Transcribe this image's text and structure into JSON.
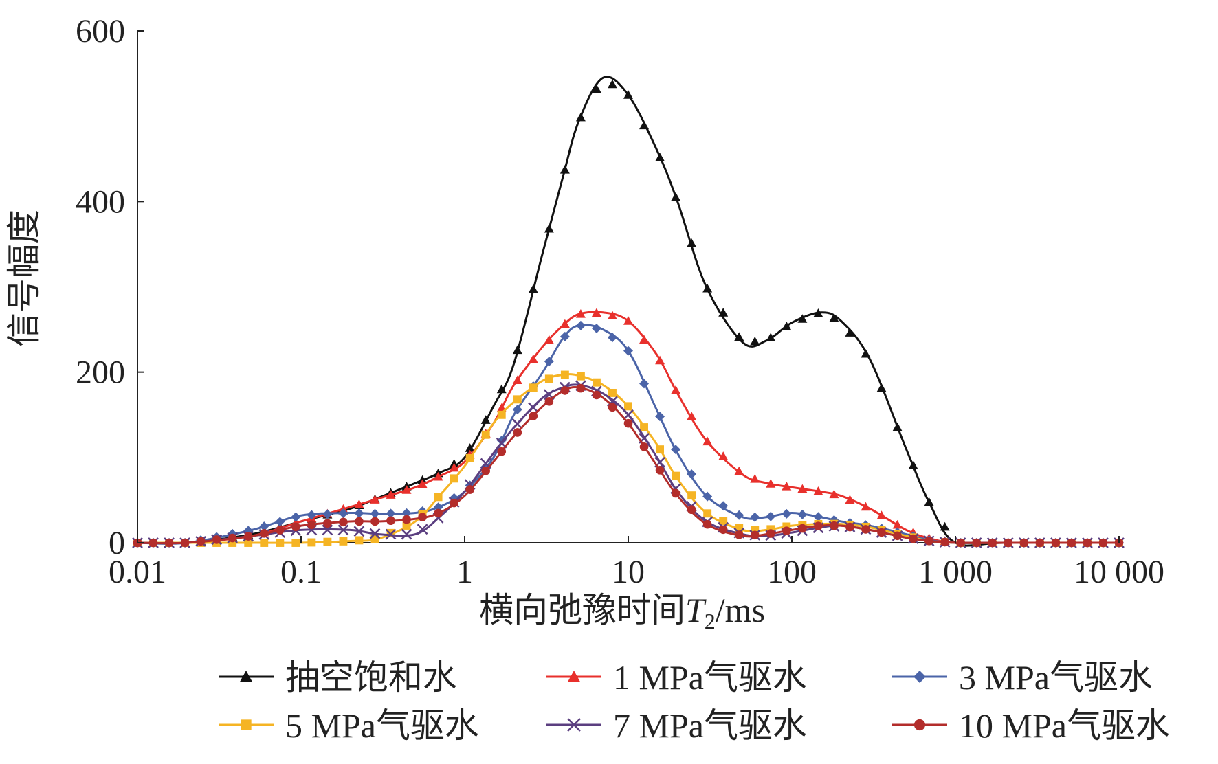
{
  "chart_data": {
    "type": "line",
    "title": "",
    "xlabel_main": "横向弛豫时间",
    "xlabel_var": "T",
    "xlabel_sub": "2",
    "xlabel_unit": "/ms",
    "ylabel": "信号幅度",
    "x_scale": "log",
    "xlim": [
      0.01,
      10000
    ],
    "ylim": [
      0,
      600
    ],
    "x_ticks": [
      {
        "value": 0.01,
        "label": "0.01"
      },
      {
        "value": 0.1,
        "label": "0.1"
      },
      {
        "value": 1,
        "label": "1"
      },
      {
        "value": 10,
        "label": "10"
      },
      {
        "value": 100,
        "label": "100"
      },
      {
        "value": 1000,
        "label": "1 000"
      },
      {
        "value": 10000,
        "label": "10 000"
      }
    ],
    "y_ticks": [
      {
        "value": 0,
        "label": "0"
      },
      {
        "value": 200,
        "label": "200"
      },
      {
        "value": 400,
        "label": "400"
      },
      {
        "value": 600,
        "label": "600"
      }
    ],
    "grid": false,
    "legend_position": "bottom",
    "series": [
      {
        "name": "抽空饱和水",
        "color": "#111111",
        "marker": "triangle",
        "x": [
          0.01,
          0.02,
          0.05,
          0.1,
          0.2,
          0.3,
          0.5,
          0.7,
          1,
          1.5,
          2,
          3,
          4,
          5,
          7,
          10,
          15,
          20,
          30,
          50,
          70,
          100,
          150,
          200,
          300,
          500,
          700,
          1000,
          2000,
          10000
        ],
        "y": [
          0,
          0,
          10,
          25,
          40,
          53,
          70,
          82,
          100,
          160,
          210,
          340,
          430,
          495,
          545,
          525,
          460,
          400,
          300,
          235,
          237,
          258,
          270,
          260,
          215,
          110,
          45,
          0,
          0,
          0
        ]
      },
      {
        "name": "1 MPa气驱水",
        "color": "#e8302c",
        "marker": "triangle",
        "x": [
          0.01,
          0.02,
          0.05,
          0.1,
          0.2,
          0.3,
          0.5,
          0.7,
          1,
          1.5,
          2,
          3,
          4,
          5,
          7,
          10,
          15,
          20,
          30,
          50,
          70,
          100,
          150,
          200,
          300,
          500,
          700,
          1000,
          2000,
          10000
        ],
        "y": [
          0,
          0,
          8,
          25,
          42,
          52,
          65,
          78,
          95,
          140,
          185,
          230,
          255,
          268,
          270,
          260,
          220,
          175,
          120,
          80,
          70,
          65,
          60,
          55,
          40,
          15,
          5,
          0,
          0,
          0
        ]
      },
      {
        "name": "3 MPa气驱水",
        "color": "#4b64a8",
        "marker": "diamond",
        "x": [
          0.01,
          0.02,
          0.05,
          0.1,
          0.2,
          0.3,
          0.5,
          0.7,
          1,
          1.5,
          2,
          3,
          4,
          5,
          7,
          10,
          15,
          20,
          30,
          50,
          70,
          100,
          150,
          200,
          300,
          500,
          700,
          1000,
          2000,
          10000
        ],
        "y": [
          0,
          0,
          15,
          32,
          35,
          34,
          35,
          42,
          60,
          100,
          150,
          200,
          240,
          255,
          250,
          225,
          155,
          105,
          55,
          30,
          30,
          35,
          30,
          25,
          20,
          10,
          3,
          0,
          0,
          0
        ]
      },
      {
        "name": "5 MPa气驱水",
        "color": "#f5b424",
        "marker": "square",
        "x": [
          0.01,
          0.02,
          0.05,
          0.1,
          0.2,
          0.3,
          0.5,
          0.7,
          1,
          1.5,
          2,
          3,
          4,
          5,
          7,
          10,
          15,
          20,
          30,
          50,
          70,
          100,
          150,
          200,
          300,
          500,
          700,
          1000,
          2000,
          10000
        ],
        "y": [
          0,
          0,
          0,
          0,
          2,
          5,
          25,
          55,
          90,
          140,
          165,
          190,
          197,
          196,
          185,
          160,
          115,
          75,
          35,
          15,
          15,
          20,
          22,
          22,
          18,
          8,
          2,
          0,
          0,
          0
        ]
      },
      {
        "name": "7 MPa气驱水",
        "color": "#5b3f80",
        "marker": "x",
        "x": [
          0.01,
          0.02,
          0.05,
          0.1,
          0.2,
          0.3,
          0.5,
          0.7,
          1,
          1.5,
          2,
          3,
          4,
          5,
          7,
          10,
          15,
          20,
          30,
          50,
          70,
          100,
          150,
          200,
          300,
          500,
          700,
          1000,
          2000,
          10000
        ],
        "y": [
          0,
          0,
          8,
          15,
          15,
          10,
          10,
          30,
          60,
          105,
          135,
          170,
          182,
          185,
          175,
          150,
          100,
          60,
          25,
          10,
          8,
          12,
          18,
          20,
          15,
          6,
          2,
          0,
          0,
          0
        ]
      },
      {
        "name": "10 MPa气驱水",
        "color": "#b32d2b",
        "marker": "circle",
        "x": [
          0.01,
          0.02,
          0.05,
          0.1,
          0.2,
          0.3,
          0.5,
          0.7,
          1,
          1.5,
          2,
          3,
          4,
          5,
          7,
          10,
          15,
          20,
          30,
          50,
          70,
          100,
          150,
          200,
          300,
          500,
          700,
          1000,
          2000,
          10000
        ],
        "y": [
          0,
          0,
          8,
          20,
          25,
          25,
          28,
          35,
          55,
          95,
          125,
          160,
          178,
          182,
          170,
          140,
          90,
          55,
          22,
          8,
          10,
          15,
          20,
          20,
          15,
          6,
          2,
          0,
          0,
          0
        ]
      }
    ]
  }
}
